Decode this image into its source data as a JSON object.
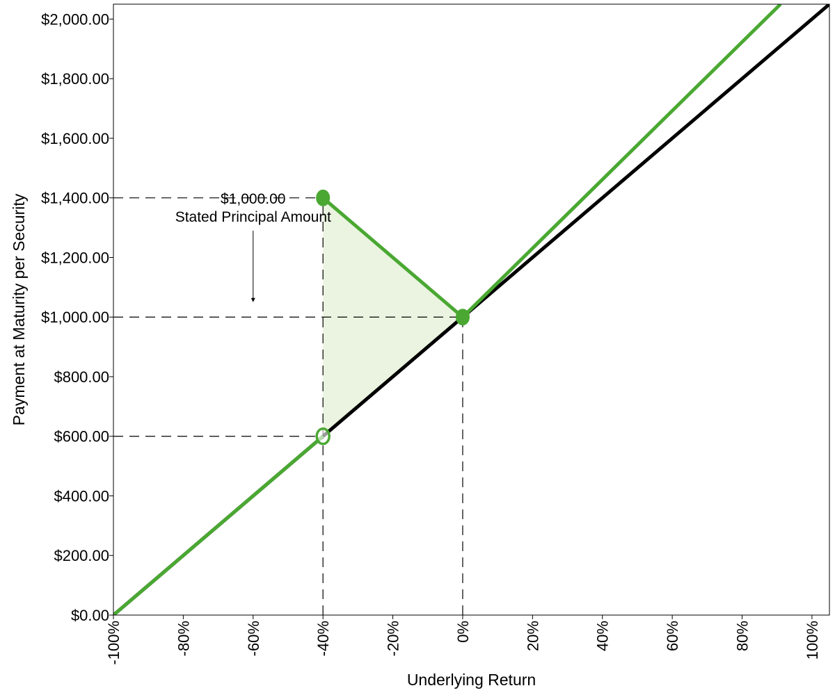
{
  "chart_data": {
    "type": "line",
    "title": "",
    "xlabel": "Underlying Return",
    "ylabel": "Payment at Maturity per Security",
    "xlim": [
      -100,
      105
    ],
    "ylim": [
      0,
      2050
    ],
    "x_ticks": [
      -100,
      -80,
      -60,
      -40,
      -20,
      0,
      20,
      40,
      60,
      80,
      100
    ],
    "x_tick_labels": [
      "-100%",
      "-80%",
      "-60%",
      "-40%",
      "-20%",
      "0%",
      "20%",
      "40%",
      "60%",
      "80%",
      "100%"
    ],
    "y_ticks": [
      0,
      200,
      400,
      600,
      800,
      1000,
      1200,
      1400,
      1600,
      1800,
      2000
    ],
    "y_tick_labels": [
      "$0.00",
      "$200.00",
      "$400.00",
      "$600.00",
      "$800.00",
      "$1,000.00",
      "$1,200.00",
      "$1,400.00",
      "$1,600.00",
      "$1,800.00",
      "$2,000.00"
    ],
    "grid": false,
    "series": [
      {
        "color": "#000000",
        "points": [
          [
            -100,
            0
          ],
          [
            105,
            2050
          ]
        ]
      },
      {
        "color": "#4aa832",
        "segments": [
          [
            [
              -100,
              0
            ],
            [
              -40,
              600
            ]
          ],
          [
            [
              -40,
              1400
            ],
            [
              0,
              1000
            ],
            [
              91,
              2050
            ]
          ]
        ]
      }
    ],
    "markers": [
      {
        "x": -40,
        "y": 1400,
        "style": "filled",
        "color": "#4aa832"
      },
      {
        "x": 0,
        "y": 1000,
        "style": "filled",
        "color": "#4aa832"
      },
      {
        "x": -40,
        "y": 600,
        "style": "hollow",
        "color": "#4aa832"
      }
    ],
    "shaded_region": {
      "points": [
        [
          -40,
          600
        ],
        [
          -40,
          1400
        ],
        [
          0,
          1000
        ]
      ],
      "color": "#eaf4e0"
    },
    "reference_lines": [
      {
        "orientation": "h",
        "y": 1400,
        "x_from": -100,
        "x_to": -40
      },
      {
        "orientation": "h",
        "y": 1000,
        "x_from": -100,
        "x_to": 0
      },
      {
        "orientation": "h",
        "y": 600,
        "x_from": -100,
        "x_to": -40
      },
      {
        "orientation": "v",
        "x": -40,
        "y_from": 0,
        "y_to": 1400
      },
      {
        "orientation": "v",
        "x": 0,
        "y_from": 0,
        "y_to": 1000
      }
    ],
    "annotation": {
      "line1": "$1,000.00",
      "line2": "Stated Principal Amount",
      "arrow_from": [
        -60,
        1290
      ],
      "arrow_to": [
        -60,
        1050
      ]
    }
  }
}
